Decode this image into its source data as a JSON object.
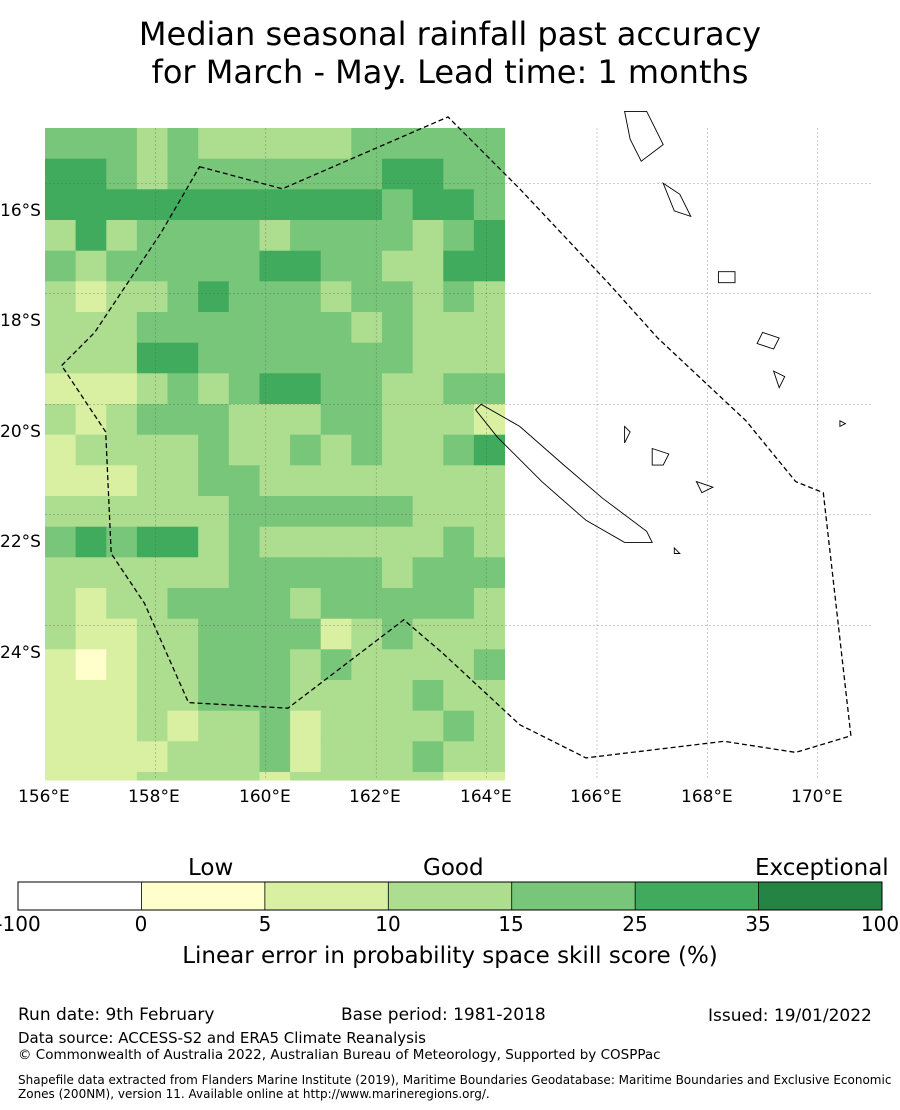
{
  "title": {
    "line1": "Median seasonal rainfall past accuracy",
    "line2": "for March - May. Lead time: 1 months"
  },
  "map": {
    "lon_labels": [
      "156°E",
      "158°E",
      "160°E",
      "162°E",
      "164°E",
      "166°E",
      "168°E",
      "170°E"
    ],
    "lat_labels": [
      "16°S",
      "18°S",
      "20°S",
      "22°S",
      "24°S"
    ],
    "lon_range": [
      156,
      171
    ],
    "lat_range": [
      -26.8,
      -15.0
    ],
    "grid_origin": {
      "lon": 156,
      "lat": -15.0,
      "cell_deg": 0.555
    },
    "grid_cols": 15,
    "grid_rows": 22,
    "grid_classes": [
      "444343333344444",
      "554344444445544",
      "555555555554554",
      "353444434444345",
      "434444455443355",
      "323345444344343",
      "333444444434333",
      "333554444444333",
      "222343455443344",
      "323444333443332",
      "233334334343345",
      "222334433333333",
      "333333444444333",
      "454553433333343",
      "333333444443444",
      "323344443444443",
      "322334444234333",
      "212334443433334",
      "222334443333433",
      "222323342333343",
      "222233342333433",
      "222333323333322"
    ],
    "eez_outline": [
      [
        158.8,
        -15.7
      ],
      [
        160.3,
        -16.1
      ],
      [
        163.3,
        -14.8
      ],
      [
        164.6,
        -16.1
      ],
      [
        166.2,
        -17.8
      ],
      [
        167.1,
        -18.8
      ],
      [
        168.7,
        -20.3
      ],
      [
        169.6,
        -21.4
      ],
      [
        170.1,
        -21.6
      ],
      [
        170.6,
        -26.0
      ],
      [
        169.6,
        -26.3
      ],
      [
        168.3,
        -26.1
      ],
      [
        165.8,
        -26.4
      ],
      [
        164.6,
        -25.8
      ],
      [
        163.2,
        -24.5
      ],
      [
        162.5,
        -23.9
      ],
      [
        160.4,
        -25.5
      ],
      [
        158.6,
        -25.4
      ],
      [
        157.8,
        -23.6
      ],
      [
        157.2,
        -22.7
      ],
      [
        157.1,
        -20.5
      ],
      [
        156.3,
        -19.3
      ],
      [
        156.9,
        -18.7
      ],
      [
        158.1,
        -16.9
      ]
    ],
    "islands": [
      {
        "name": "new-caledonia",
        "points": [
          [
            163.9,
            -20.0
          ],
          [
            164.6,
            -20.4
          ],
          [
            165.4,
            -21.1
          ],
          [
            166.1,
            -21.7
          ],
          [
            166.9,
            -22.3
          ],
          [
            167.0,
            -22.5
          ],
          [
            166.5,
            -22.5
          ],
          [
            165.8,
            -22.1
          ],
          [
            165.0,
            -21.4
          ],
          [
            164.2,
            -20.6
          ],
          [
            163.8,
            -20.1
          ]
        ]
      },
      {
        "name": "espiritu-santo",
        "points": [
          [
            166.5,
            -14.7
          ],
          [
            166.9,
            -14.7
          ],
          [
            167.2,
            -15.3
          ],
          [
            166.8,
            -15.6
          ],
          [
            166.6,
            -15.2
          ]
        ]
      },
      {
        "name": "malakula",
        "points": [
          [
            167.2,
            -16.0
          ],
          [
            167.5,
            -16.2
          ],
          [
            167.7,
            -16.6
          ],
          [
            167.4,
            -16.5
          ]
        ]
      },
      {
        "name": "efate",
        "points": [
          [
            168.2,
            -17.6
          ],
          [
            168.5,
            -17.6
          ],
          [
            168.5,
            -17.8
          ],
          [
            168.2,
            -17.8
          ]
        ]
      },
      {
        "name": "erromango",
        "points": [
          [
            169.0,
            -18.7
          ],
          [
            169.3,
            -18.8
          ],
          [
            169.2,
            -19.0
          ],
          [
            168.9,
            -18.9
          ]
        ]
      },
      {
        "name": "tanna",
        "points": [
          [
            169.2,
            -19.4
          ],
          [
            169.4,
            -19.5
          ],
          [
            169.3,
            -19.7
          ]
        ]
      },
      {
        "name": "ouvea",
        "points": [
          [
            166.5,
            -20.4
          ],
          [
            166.6,
            -20.5
          ],
          [
            166.5,
            -20.7
          ]
        ]
      },
      {
        "name": "lifou",
        "points": [
          [
            167.0,
            -20.8
          ],
          [
            167.3,
            -20.9
          ],
          [
            167.2,
            -21.1
          ],
          [
            167.0,
            -21.1
          ]
        ]
      },
      {
        "name": "mare",
        "points": [
          [
            167.8,
            -21.4
          ],
          [
            168.1,
            -21.5
          ],
          [
            167.9,
            -21.6
          ]
        ]
      },
      {
        "name": "isle-of-pines",
        "points": [
          [
            167.4,
            -22.6
          ],
          [
            167.5,
            -22.7
          ],
          [
            167.4,
            -22.7
          ]
        ]
      },
      {
        "name": "matthew-hunter",
        "points": [
          [
            170.4,
            -20.3
          ],
          [
            170.5,
            -20.35
          ],
          [
            170.4,
            -20.4
          ]
        ]
      }
    ]
  },
  "colorbar": {
    "categories": [
      "Low",
      "Good",
      "Exceptional"
    ],
    "ticks": [
      "-100",
      "0",
      "5",
      "10",
      "15",
      "25",
      "35",
      "100"
    ],
    "colors": [
      "#ffffff",
      "#ffffcc",
      "#d9f0a3",
      "#addd8e",
      "#78c679",
      "#41ab5d",
      "#238443"
    ],
    "label": "Linear error in probability space skill score (%)"
  },
  "footer": {
    "run_date": "Run date: 9th February",
    "base_period": "Base period: 1981-2018",
    "issued": "Issued: 19/01/2022",
    "data_source": "Data source: ACCESS-S2 and ERA5 Climate Reanalysis",
    "copyright": "© Commonwealth of Australia 2022, Australian Bureau of Meteorology, Supported by COSPPac",
    "shapefile": "Shapefile data extracted from Flanders Marine Institute (2019), Maritime Boundaries Geodatabase: Maritime Boundaries and Exclusive Economic Zones (200NM), version 11. Available online at http://www.marineregions.org/."
  }
}
